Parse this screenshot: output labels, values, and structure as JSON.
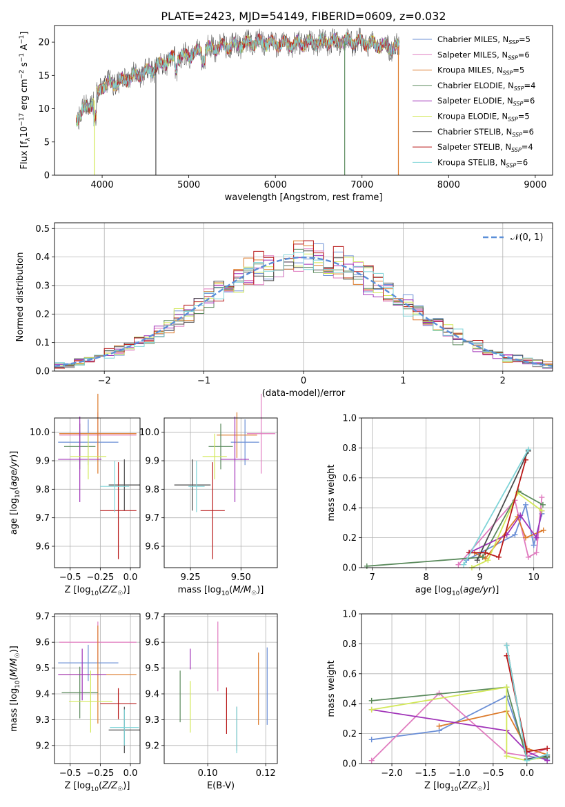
{
  "figure": {
    "title": "PLATE=2423, MJD=54149, FIBERID=0609, z=0.032"
  },
  "models": [
    {
      "name": "Chabrier MILES, N_SSP=5",
      "lib": "Chabrier MILES, N",
      "sub": "SSP",
      "tail": "=5",
      "color": "#6b8fd6"
    },
    {
      "name": "Salpeter MILES, N_SSP=6",
      "lib": "Salpeter MILES, N",
      "sub": "SSP",
      "tail": "=6",
      "color": "#e07bbf"
    },
    {
      "name": "Kroupa MILES, N_SSP=5",
      "lib": "Kroupa MILES, N",
      "sub": "SSP",
      "tail": "=5",
      "color": "#dc7a2a"
    },
    {
      "name": "Chabrier ELODIE, N_SSP=4",
      "lib": "Chabrier ELODIE, N",
      "sub": "SSP",
      "tail": "=4",
      "color": "#5a8a5c"
    },
    {
      "name": "Salpeter ELODIE, N_SSP=6",
      "lib": "Salpeter ELODIE, N",
      "sub": "SSP",
      "tail": "=6",
      "color": "#a032b8"
    },
    {
      "name": "Kroupa ELODIE, N_SSP=5",
      "lib": "Kroupa ELODIE, N",
      "sub": "SSP",
      "tail": "=5",
      "color": "#d2e858"
    },
    {
      "name": "Chabrier STELIB, N_SSP=6",
      "lib": "Chabrier STELIB, N",
      "sub": "SSP",
      "tail": "=6",
      "color": "#4a4a4a"
    },
    {
      "name": "Salpeter STELIB, N_SSP=4",
      "lib": "Salpeter STELIB, N",
      "sub": "SSP",
      "tail": "=4",
      "color": "#b81818"
    },
    {
      "name": "Kroupa STELIB, N_SSP=6",
      "lib": "Kroupa STELIB, N",
      "sub": "SSP",
      "tail": "=6",
      "color": "#7fd4d8"
    }
  ],
  "chart_data": [
    {
      "id": "spectrum",
      "type": "line",
      "xlabel": "wavelength [Angstrom, rest frame]",
      "ylabel": "Flux [f_λ 10^-17 erg cm^-2 s^-1 A^-1]",
      "xlim": [
        3450,
        9200
      ],
      "ylim": [
        0,
        22.5
      ],
      "xticks": [
        4000,
        5000,
        6000,
        7000,
        8000,
        9000
      ],
      "yticks": [
        0,
        5,
        10,
        15,
        20
      ],
      "grid": false,
      "legend": "top-right",
      "x_range": [
        3700,
        7430
      ],
      "continuum": [
        [
          3700,
          8.5
        ],
        [
          3800,
          10
        ],
        [
          3900,
          11
        ],
        [
          4000,
          13.5
        ],
        [
          4200,
          14
        ],
        [
          4400,
          15
        ],
        [
          4600,
          16
        ],
        [
          4800,
          17.5
        ],
        [
          5000,
          18
        ],
        [
          5200,
          19
        ],
        [
          5500,
          19.5
        ],
        [
          5800,
          20
        ],
        [
          6000,
          19.8
        ],
        [
          6200,
          19.7
        ],
        [
          6500,
          20
        ],
        [
          6700,
          20.2
        ],
        [
          7000,
          20
        ],
        [
          7200,
          19.5
        ],
        [
          7400,
          19.2
        ]
      ],
      "dips": [
        {
          "x": 3910,
          "y": 0
        },
        {
          "x": 4620,
          "y": 0
        },
        {
          "x": 6800,
          "y": 0
        },
        {
          "x": 7420,
          "y": 0
        }
      ]
    },
    {
      "id": "residuals",
      "type": "step",
      "xlabel": "(data-model)/error",
      "ylabel": "Normed distribution",
      "xlim": [
        -2.5,
        2.5
      ],
      "ylim": [
        0,
        0.52
      ],
      "xticks": [
        -2,
        -1,
        0,
        1,
        2
      ],
      "xtick_labels": [
        "−2",
        "−1",
        "0",
        "1",
        "2"
      ],
      "yticks": [
        0.0,
        0.1,
        0.2,
        0.3,
        0.4,
        0.5
      ],
      "ytick_labels": [
        "0.0",
        "0.1",
        "0.2",
        "0.3",
        "0.4",
        "0.5"
      ],
      "grid": true,
      "bin_width": 0.1,
      "reference": {
        "label": "𝒩(0, 1)",
        "type": "gaussian",
        "mean": 0,
        "sigma": 1,
        "color": "#5b8fd8"
      }
    },
    {
      "id": "age-vs-Z",
      "type": "errorbar",
      "xlabel": "Z [log10(Z/Z☉)]",
      "ylabel": "age  [log10(age/yr)]",
      "xlim": [
        -0.63,
        0.08
      ],
      "ylim": [
        9.525,
        10.05
      ],
      "xticks": [
        -0.5,
        -0.25,
        0.0
      ],
      "xtick_labels": [
        "−0.5",
        "−0.25",
        "0.0"
      ],
      "yticks": [
        9.6,
        9.7,
        9.8,
        9.9,
        10.0
      ],
      "ytick_labels": [
        "9.6",
        "9.7",
        "9.8",
        "9.9",
        "10.0"
      ],
      "grid": true,
      "points": [
        {
          "model": 0,
          "x": -0.35,
          "xerr": 0.25,
          "y": 9.965,
          "yerr": 0.08
        },
        {
          "model": 1,
          "x": -0.27,
          "xerr": 0.32,
          "y": 9.99,
          "yerr": 0.08
        },
        {
          "model": 2,
          "x": -0.27,
          "xerr": 0.32,
          "y": 9.995,
          "yerr": 0.14
        },
        {
          "model": 3,
          "x": -0.42,
          "xerr": 0.13,
          "y": 9.95,
          "yerr": 0.08
        },
        {
          "model": 4,
          "x": -0.42,
          "xerr": 0.18,
          "y": 9.905,
          "yerr": 0.15
        },
        {
          "model": 5,
          "x": -0.35,
          "xerr": 0.15,
          "y": 9.915,
          "yerr": 0.08
        },
        {
          "model": 6,
          "x": -0.05,
          "xerr": 0.13,
          "y": 9.815,
          "yerr": 0.09
        },
        {
          "model": 7,
          "x": -0.1,
          "xerr": 0.15,
          "y": 9.725,
          "yerr": 0.17
        },
        {
          "model": 8,
          "x": -0.13,
          "xerr": 0.12,
          "y": 9.81,
          "yerr": 0.09
        }
      ]
    },
    {
      "id": "age-vs-mass",
      "type": "errorbar",
      "xlabel": "mass [log10(M/M☉)]",
      "ylabel": "",
      "xlim": [
        9.12,
        9.68
      ],
      "ylim": [
        9.525,
        10.05
      ],
      "xticks": [
        9.25,
        9.5
      ],
      "xtick_labels": [
        "9.25",
        "9.50"
      ],
      "yticks": [
        9.6,
        9.7,
        9.8,
        9.9,
        10.0
      ],
      "ytick_labels": [
        "9.6",
        "9.7",
        "9.8",
        "9.9",
        "10.0"
      ],
      "grid": true,
      "points": [
        {
          "model": 0,
          "x": 9.52,
          "xerr": 0.07,
          "y": 9.965,
          "yerr": 0.08
        },
        {
          "model": 1,
          "x": 9.6,
          "xerr": 0.07,
          "y": 9.995,
          "yerr": 0.14
        },
        {
          "model": 2,
          "x": 9.48,
          "xerr": 0.1,
          "y": 9.99,
          "yerr": 0.08
        },
        {
          "model": 3,
          "x": 9.4,
          "xerr": 0.06,
          "y": 9.95,
          "yerr": 0.08
        },
        {
          "model": 4,
          "x": 9.47,
          "xerr": 0.07,
          "y": 9.905,
          "yerr": 0.15
        },
        {
          "model": 5,
          "x": 9.37,
          "xerr": 0.06,
          "y": 9.915,
          "yerr": 0.08
        },
        {
          "model": 6,
          "x": 9.26,
          "xerr": 0.09,
          "y": 9.815,
          "yerr": 0.09
        },
        {
          "model": 7,
          "x": 9.36,
          "xerr": 0.06,
          "y": 9.725,
          "yerr": 0.17
        },
        {
          "model": 8,
          "x": 9.28,
          "xerr": 0.04,
          "y": 9.81,
          "yerr": 0.09
        }
      ]
    },
    {
      "id": "weight-vs-age",
      "type": "line",
      "xlabel": "age  [log10(age/yr)]",
      "ylabel": "mass weight",
      "xlim": [
        6.8,
        10.35
      ],
      "ylim": [
        0,
        1.0
      ],
      "xticks": [
        7,
        8,
        9,
        10
      ],
      "xtick_labels": [
        "7",
        "8",
        "9",
        "10"
      ],
      "yticks": [
        0,
        0.2,
        0.4,
        0.6,
        0.8,
        1.0
      ],
      "ytick_labels": [
        "0.0",
        "0.2",
        "0.4",
        "0.6",
        "0.8",
        "1.0"
      ],
      "grid": true,
      "series": [
        {
          "model": 0,
          "x": [
            8.75,
            9.65,
            9.85,
            10.0,
            10.15
          ],
          "y": [
            0.05,
            0.22,
            0.42,
            0.15,
            0.36
          ]
        },
        {
          "model": 1,
          "x": [
            8.6,
            9.65,
            9.9,
            10.05,
            10.15
          ],
          "y": [
            0.02,
            0.45,
            0.07,
            0.1,
            0.47
          ]
        },
        {
          "model": 2,
          "x": [
            8.9,
            9.1,
            9.7,
            9.85,
            10.18
          ],
          "y": [
            0.1,
            0.06,
            0.34,
            0.2,
            0.25
          ]
        },
        {
          "model": 3,
          "x": [
            6.9,
            9.05,
            9.72,
            10.17
          ],
          "y": [
            0.01,
            0.07,
            0.51,
            0.42
          ]
        },
        {
          "model": 4,
          "x": [
            8.8,
            9.5,
            9.75,
            10.05,
            10.15
          ],
          "y": [
            0.1,
            0.22,
            0.35,
            0.2,
            0.38
          ]
        },
        {
          "model": 5,
          "x": [
            8.85,
            9.15,
            9.7,
            10.15
          ],
          "y": [
            0.0,
            0.05,
            0.5,
            0.38
          ]
        },
        {
          "model": 6,
          "x": [
            8.95,
            9.9
          ],
          "y": [
            0.05,
            0.78
          ]
        },
        {
          "model": 7,
          "x": [
            8.8,
            9.1,
            9.35,
            9.85
          ],
          "y": [
            0.1,
            0.1,
            0.07,
            0.72
          ]
        },
        {
          "model": 8,
          "x": [
            8.7,
            9.9
          ],
          "y": [
            0.02,
            0.79
          ]
        }
      ]
    },
    {
      "id": "mass-vs-Z",
      "type": "errorbar",
      "xlabel": "Z [log10(Z/Z☉)]",
      "ylabel": "mass [log10(M/M☉)]",
      "xlim": [
        -0.63,
        0.08
      ],
      "ylim": [
        9.13,
        9.71
      ],
      "xticks": [
        -0.5,
        -0.25,
        0.0
      ],
      "xtick_labels": [
        "−0.5",
        "−0.25",
        "0.0"
      ],
      "yticks": [
        9.2,
        9.3,
        9.4,
        9.5,
        9.6,
        9.7
      ],
      "ytick_labels": [
        "9.2",
        "9.3",
        "9.4",
        "9.5",
        "9.6",
        "9.7"
      ],
      "grid": true,
      "points": [
        {
          "model": 0,
          "x": -0.35,
          "xerr": 0.25,
          "y": 9.52,
          "yerr": 0.07
        },
        {
          "model": 1,
          "x": -0.27,
          "xerr": 0.32,
          "y": 9.6,
          "yerr": 0.08
        },
        {
          "model": 2,
          "x": -0.27,
          "xerr": 0.32,
          "y": 9.475,
          "yerr": 0.19
        },
        {
          "model": 3,
          "x": -0.42,
          "xerr": 0.15,
          "y": 9.405,
          "yerr": 0.1
        },
        {
          "model": 4,
          "x": -0.4,
          "xerr": 0.2,
          "y": 9.475,
          "yerr": 0.1
        },
        {
          "model": 5,
          "x": -0.33,
          "xerr": 0.18,
          "y": 9.37,
          "yerr": 0.12
        },
        {
          "model": 6,
          "x": -0.05,
          "xerr": 0.13,
          "y": 9.26,
          "yerr": 0.09
        },
        {
          "model": 7,
          "x": -0.1,
          "xerr": 0.15,
          "y": 9.362,
          "yerr": 0.06
        },
        {
          "model": 8,
          "x": -0.05,
          "xerr": 0.12,
          "y": 9.27,
          "yerr": 0.07
        }
      ]
    },
    {
      "id": "mass-vs-EBV",
      "type": "errorbar",
      "xlabel": "E(B-V)",
      "ylabel": "",
      "xlim": [
        0.085,
        0.124
      ],
      "ylim": [
        9.13,
        9.71
      ],
      "xticks": [
        0.1,
        0.12
      ],
      "xtick_labels": [
        "0.10",
        "0.12"
      ],
      "yticks": [
        9.2,
        9.3,
        9.4,
        9.5,
        9.6,
        9.7
      ],
      "ytick_labels": [
        "9.2",
        "9.3",
        "9.4",
        "9.5",
        "9.6",
        "9.7"
      ],
      "grid": true,
      "points": [
        {
          "model": 0,
          "x": 0.1205,
          "xerr": 0,
          "y": 9.43,
          "yerr": 0.15
        },
        {
          "model": 1,
          "x": 0.1035,
          "xerr": 0,
          "y": 9.545,
          "yerr": 0.135
        },
        {
          "model": 2,
          "x": 0.1175,
          "xerr": 0,
          "y": 9.42,
          "yerr": 0.14
        },
        {
          "model": 3,
          "x": 0.0905,
          "xerr": 0,
          "y": 9.39,
          "yerr": 0.1
        },
        {
          "model": 4,
          "x": 0.094,
          "xerr": 0,
          "y": 9.535,
          "yerr": 0.04
        },
        {
          "model": 5,
          "x": 0.094,
          "xerr": 0,
          "y": 9.35,
          "yerr": 0.1
        },
        {
          "model": 6,
          "x": 0.11,
          "xerr": 0,
          "y": 9.265,
          "yerr": 0.085
        },
        {
          "model": 7,
          "x": 0.1065,
          "xerr": 0,
          "y": 9.335,
          "yerr": 0.09
        },
        {
          "model": 8,
          "x": 0.11,
          "xerr": 0,
          "y": 9.26,
          "yerr": 0.09
        }
      ]
    },
    {
      "id": "weight-vs-Z",
      "type": "line",
      "xlabel": "Z [log10(Z/Z☉)]",
      "ylabel": "mass weight",
      "xlim": [
        -2.45,
        0.38
      ],
      "ylim": [
        0,
        1.0
      ],
      "xticks": [
        -2.0,
        -1.5,
        -1.0,
        -0.5,
        0.0
      ],
      "xtick_labels": [
        "−2.0",
        "−1.5",
        "−1.0",
        "−0.5",
        "0.0"
      ],
      "yticks": [
        0,
        0.2,
        0.4,
        0.6,
        0.8,
        1.0
      ],
      "ytick_labels": [
        "0.0",
        "0.2",
        "0.4",
        "0.6",
        "0.8",
        "1.0"
      ],
      "grid": true,
      "series": [
        {
          "model": 0,
          "x": [
            -2.3,
            -1.3,
            -0.3,
            0.0,
            0.3
          ],
          "y": [
            0.16,
            0.22,
            0.45,
            0.05,
            0.03
          ]
        },
        {
          "model": 1,
          "x": [
            -2.3,
            -1.3,
            -0.3,
            0.0,
            0.3
          ],
          "y": [
            0.02,
            0.47,
            0.07,
            0.05,
            0.1
          ]
        },
        {
          "model": 2,
          "x": [
            -1.3,
            -0.3,
            0.0,
            0.3
          ],
          "y": [
            0.25,
            0.35,
            0.1,
            0.06
          ]
        },
        {
          "model": 3,
          "x": [
            -2.3,
            -0.3,
            0.0,
            0.3
          ],
          "y": [
            0.42,
            0.51,
            0.03,
            0.04
          ]
        },
        {
          "model": 4,
          "x": [
            -2.3,
            -0.3,
            0.0,
            0.3
          ],
          "y": [
            0.36,
            0.22,
            0.08,
            0.02
          ]
        },
        {
          "model": 5,
          "x": [
            -2.3,
            -0.3,
            -0.3,
            0.0,
            0.3
          ],
          "y": [
            0.36,
            0.51,
            0.05,
            0.02,
            0.05
          ]
        },
        {
          "model": 6,
          "x": [
            -0.3,
            0.0,
            0.3
          ],
          "y": [
            0.79,
            0.03,
            0.05
          ]
        },
        {
          "model": 7,
          "x": [
            -0.3,
            0.0,
            0.3
          ],
          "y": [
            0.72,
            0.08,
            0.1
          ]
        },
        {
          "model": 8,
          "x": [
            -0.3,
            0.0,
            0.3
          ],
          "y": [
            0.79,
            0.02,
            0.06
          ]
        }
      ]
    }
  ]
}
